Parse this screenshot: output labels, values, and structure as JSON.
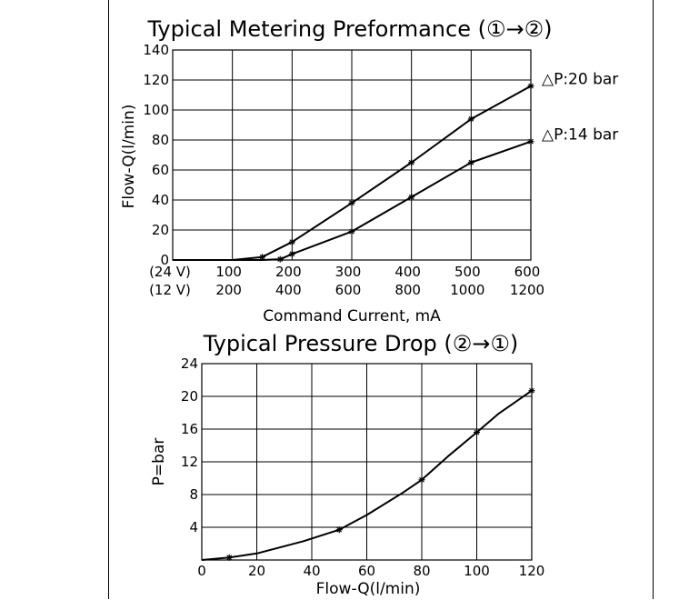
{
  "chart_data": [
    {
      "type": "line",
      "title": "Typical Metering Preformance (①→②)",
      "xlabel": "Command Current, mA",
      "ylabel": "Flow-Q(l/min)",
      "x_tick_labels_rows": [
        {
          "label": "(24 V)",
          "ticks": [
            "100",
            "200",
            "300",
            "400",
            "500",
            "600"
          ]
        },
        {
          "label": "(12 V)",
          "ticks": [
            "200",
            "400",
            "600",
            "800",
            "1000",
            "1200"
          ]
        }
      ],
      "xlim": [
        0,
        600
      ],
      "ylim": [
        0,
        140
      ],
      "yticks": [
        "0",
        "20",
        "40",
        "60",
        "80",
        "100",
        "120",
        "140"
      ],
      "grid": true,
      "series": [
        {
          "name": "△P:20 bar",
          "x": [
            0,
            100,
            150,
            200,
            300,
            400,
            500,
            600
          ],
          "y": [
            0,
            0,
            2,
            12,
            38,
            65,
            94,
            116
          ],
          "markers_at": [
            150,
            200,
            300,
            400,
            500,
            600
          ]
        },
        {
          "name": "△P:14 bar",
          "x": [
            0,
            100,
            150,
            180,
            200,
            300,
            400,
            500,
            600
          ],
          "y": [
            0,
            0,
            0,
            0.5,
            4,
            19,
            42,
            65,
            79
          ],
          "markers_at": [
            180,
            200,
            300,
            400,
            500,
            600
          ]
        }
      ]
    },
    {
      "type": "line",
      "title": "Typical Pressure Drop (②→①)",
      "xlabel": "Flow-Q(l/min)",
      "ylabel": "P=bar",
      "xticks": [
        "0",
        "20",
        "40",
        "60",
        "80",
        "100",
        "120"
      ],
      "yticks": [
        "4",
        "8",
        "12",
        "16",
        "20",
        "24"
      ],
      "xlim": [
        0,
        120
      ],
      "ylim": [
        0,
        24
      ],
      "grid": true,
      "series": [
        {
          "x": [
            0,
            10,
            20,
            37,
            50,
            60,
            73,
            80,
            90,
            100,
            108,
            120
          ],
          "y": [
            0,
            0.3,
            0.8,
            2.3,
            3.7,
            5.5,
            8.2,
            9.8,
            12.8,
            15.6,
            17.9,
            20.7
          ],
          "markers_at": [
            10,
            50,
            80,
            100,
            120
          ]
        }
      ]
    }
  ]
}
